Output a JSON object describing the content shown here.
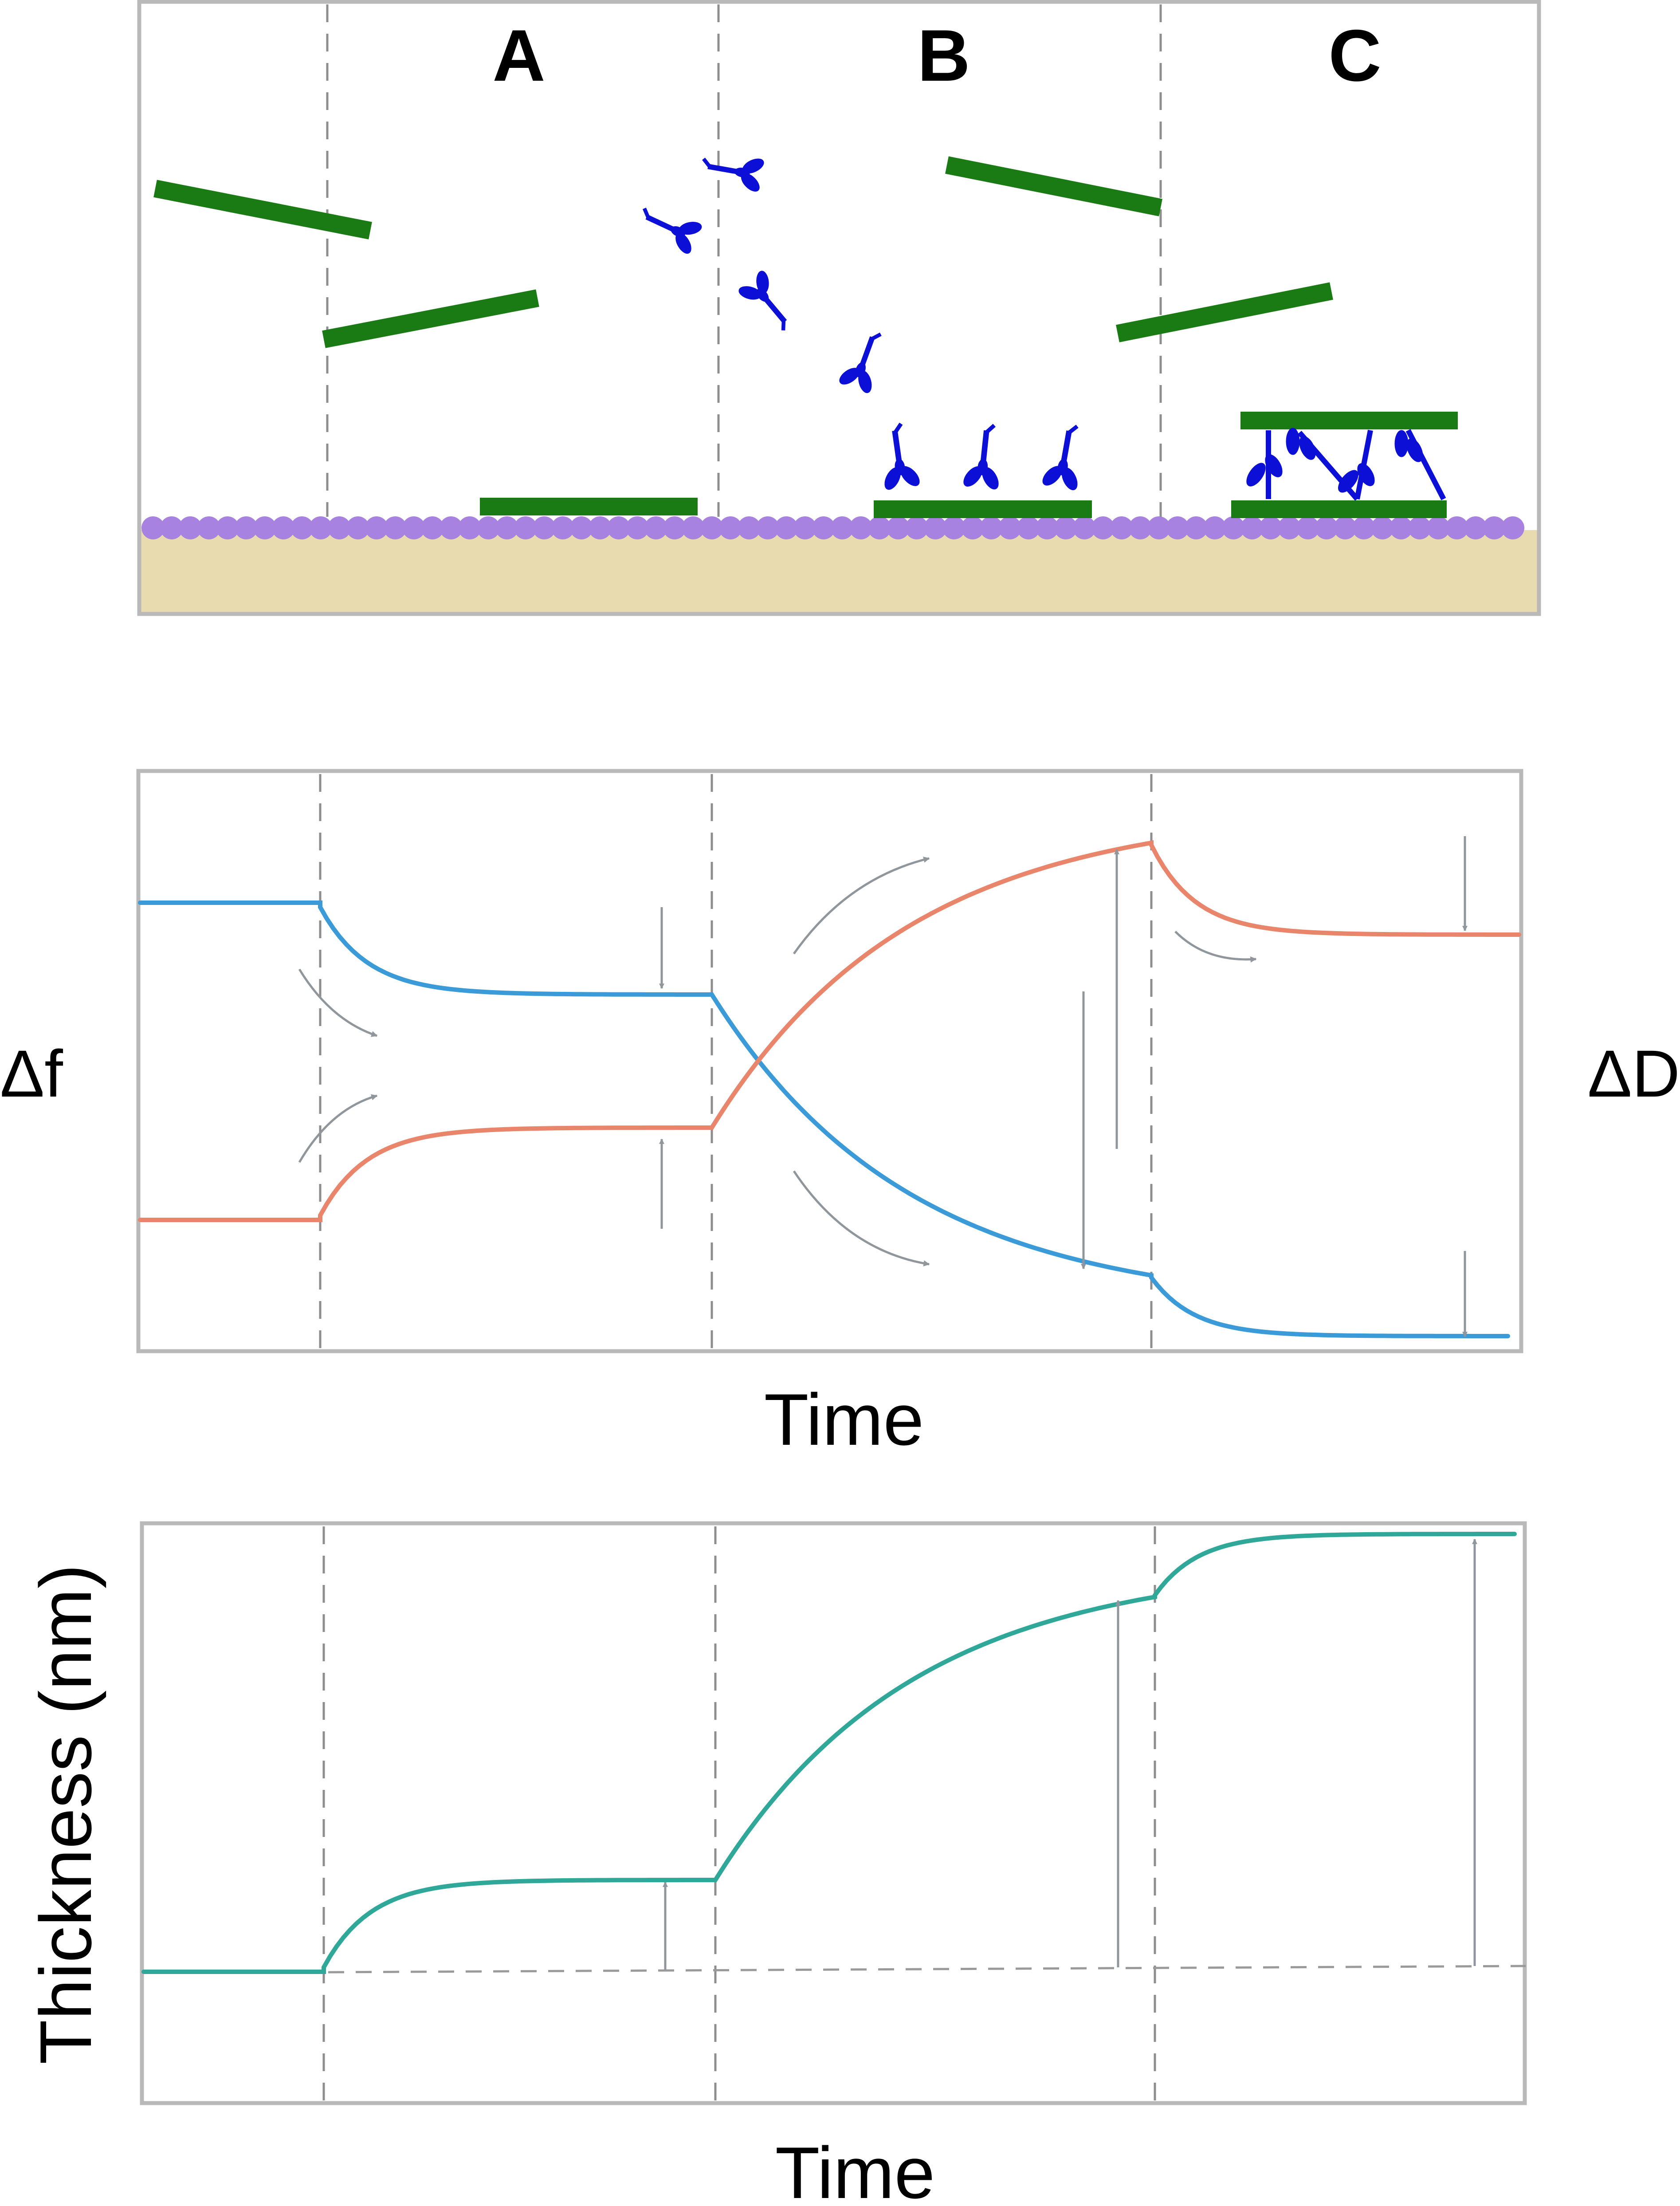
{
  "schematic": {
    "stage_labels": [
      "A",
      "B",
      "C"
    ],
    "colors": {
      "fiber": "#1a7a14",
      "antibody": "#0c10d6",
      "lipid_heads": "#a882e0",
      "substrate": "#e8dbb0"
    },
    "icons": [
      "fiber",
      "antibody",
      "lipid-bilayer",
      "substrate"
    ]
  },
  "qcm_plot": {
    "left_label": "Δf",
    "right_label": "ΔD",
    "xlabel": "Time",
    "colors": {
      "frequency": "#3b9ad8",
      "dissipation": "#e8856a"
    }
  },
  "thickness_plot": {
    "ylabel": "Thickness (nm)",
    "xlabel": "Time",
    "colors": {
      "thickness": "#2fa89a"
    }
  }
}
